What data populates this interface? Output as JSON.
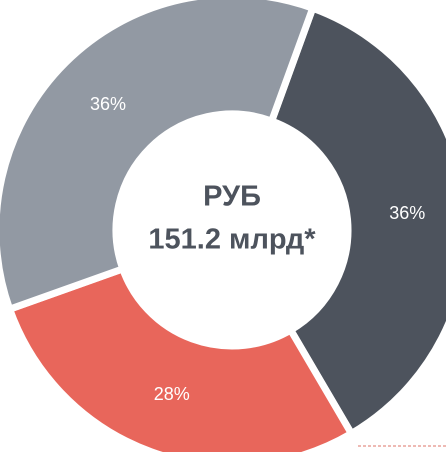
{
  "chart_data": {
    "type": "donut",
    "values": [
      36,
      28,
      36
    ],
    "value_labels": [
      "36%",
      "28%",
      "36%"
    ],
    "colors": [
      "#4d535d",
      "#e8665b",
      "#9299a3"
    ],
    "center_text": [
      "РУБ",
      "151.2 млрд*"
    ]
  }
}
